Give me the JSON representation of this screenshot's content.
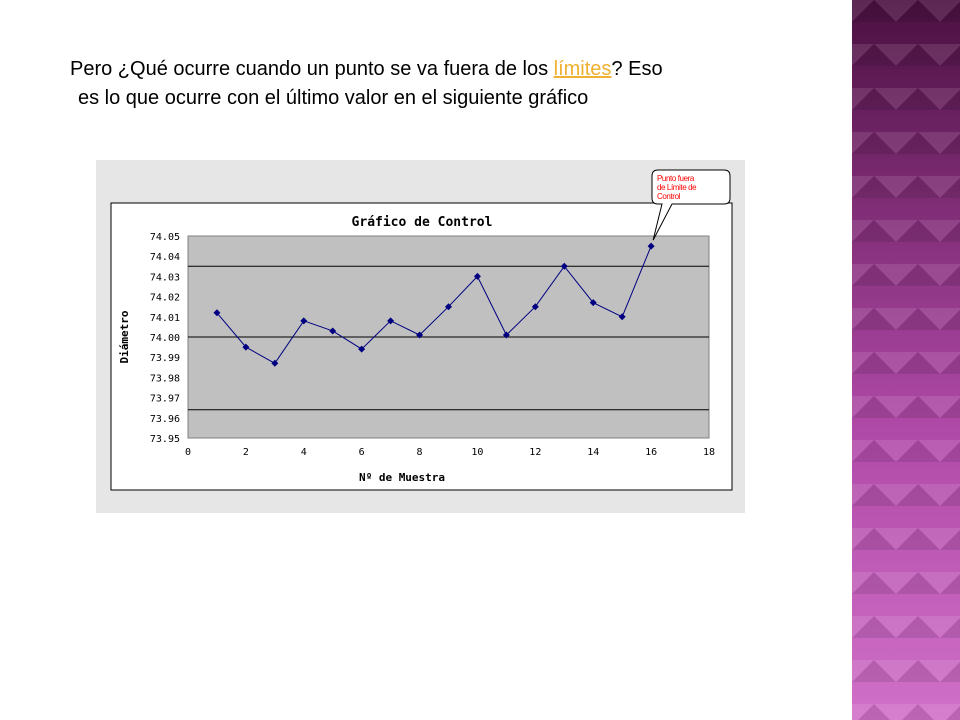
{
  "slide": {
    "text_part1": "Pero ¿Qué ocurre cuando un punto se va fuera de los ",
    "link_text": "límites",
    "text_part2": "? Eso",
    "text_line2": "es lo que ocurre con el último valor en el siguiente gráfico"
  },
  "colors": {
    "plot_bg": "#c0c0c0",
    "series": "#000080",
    "chart_bg": "#e6e6e6",
    "link": "#f0b030",
    "callout_text": "#ff0000"
  },
  "chart_data": {
    "type": "line",
    "title": "Gráfico de Control",
    "xlabel": "Nº de Muestra",
    "ylabel": "Diámetro",
    "xlim": [
      0,
      18
    ],
    "ylim": [
      73.95,
      74.05
    ],
    "x_ticks": [
      "0",
      "2",
      "4",
      "6",
      "8",
      "10",
      "12",
      "14",
      "16",
      "18"
    ],
    "y_ticks": [
      "74.05",
      "74.04",
      "74.03",
      "74.02",
      "74.01",
      "74.00",
      "73.99",
      "73.98",
      "73.97",
      "73.96",
      "73.95"
    ],
    "series": [
      {
        "x": [
          1,
          2,
          3,
          4,
          5,
          6,
          7,
          8,
          9,
          10,
          11,
          12,
          13,
          14,
          15,
          16
        ],
        "values": [
          74.012,
          73.995,
          73.987,
          74.008,
          74.003,
          73.994,
          74.008,
          74.001,
          74.015,
          74.03,
          74.001,
          74.015,
          74.035,
          74.017,
          74.01,
          74.045
        ]
      }
    ],
    "reference_lines": [
      74.035,
      74.0,
      73.964
    ],
    "grid": false,
    "legend": "none",
    "annotation": {
      "lines": [
        "Punto fuera",
        "de Límite de",
        "Control"
      ],
      "target_x": 16,
      "target_y": 74.045
    }
  }
}
